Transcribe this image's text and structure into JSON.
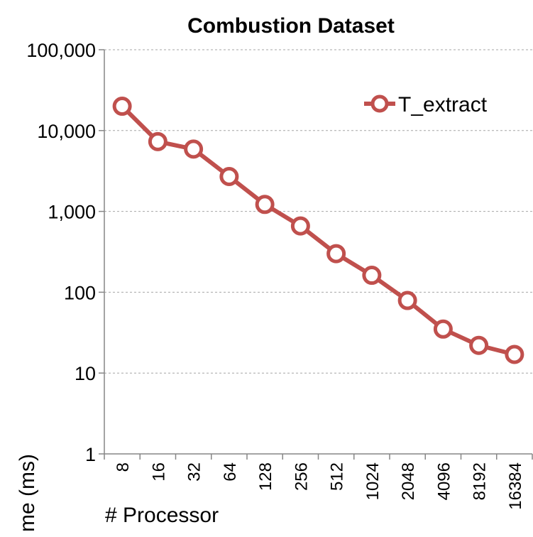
{
  "chart_data": {
    "type": "line",
    "title": "Combustion Dataset",
    "xlabel": "# Processor",
    "ylabel": "Time (ms)",
    "y_scale": "log",
    "ylim": [
      1,
      100000
    ],
    "y_ticks": [
      "1",
      "10",
      "100",
      "1,000",
      "10,000",
      "100,000"
    ],
    "categories": [
      "8",
      "16",
      "32",
      "64",
      "128",
      "256",
      "512",
      "1024",
      "2048",
      "4096",
      "8192",
      "16384"
    ],
    "series": [
      {
        "name": "T_extract",
        "color": "#c0504d",
        "values": [
          20000,
          7300,
          5900,
          2700,
          1220,
          660,
          300,
          162,
          79,
          35,
          22,
          17
        ]
      }
    ],
    "legend_position": "top-right",
    "grid": "horizontal dashed"
  }
}
